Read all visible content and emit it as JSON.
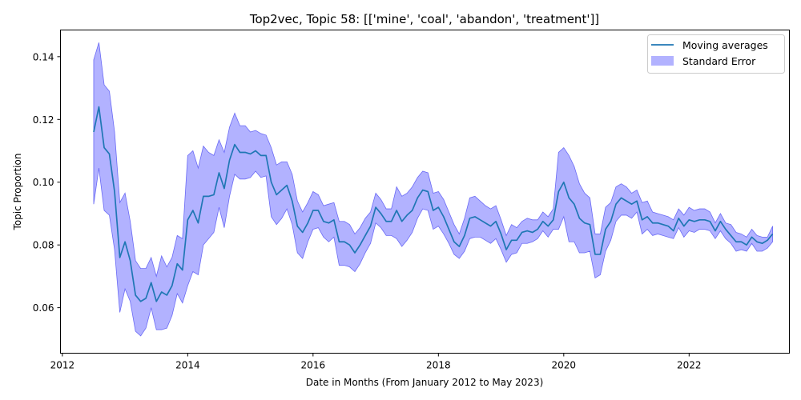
{
  "chart_data": {
    "type": "line",
    "title": "Top2vec, Topic 58: [['mine', 'coal', 'abandon', 'treatment']]",
    "xlabel": "Date in Months (From January 2012 to May 2023)",
    "ylabel": "Topic Proportion",
    "xlim": [
      2011.97,
      2023.6
    ],
    "ylim": [
      0.0455,
      0.1485
    ],
    "x_ticks": [
      2012,
      2014,
      2016,
      2018,
      2020,
      2022
    ],
    "x_tick_labels": [
      "2012",
      "2014",
      "2016",
      "2018",
      "2020",
      "2022"
    ],
    "y_ticks": [
      0.06,
      0.08,
      0.1,
      0.12,
      0.14
    ],
    "y_tick_labels": [
      "0.06",
      "0.08",
      "0.10",
      "0.12",
      "0.14"
    ],
    "grid": false,
    "legend_position": "top-right",
    "colors": {
      "line": "#1f77b4",
      "band": "#0000ff",
      "band_stroke": "#6a6af5"
    },
    "series": [
      {
        "name": "Moving averages",
        "x": [
          2012.5,
          2012.583,
          2012.667,
          2012.75,
          2012.833,
          2012.917,
          2013.0,
          2013.083,
          2013.167,
          2013.25,
          2013.333,
          2013.417,
          2013.5,
          2013.583,
          2013.667,
          2013.75,
          2013.833,
          2013.917,
          2014.0,
          2014.083,
          2014.167,
          2014.25,
          2014.333,
          2014.417,
          2014.5,
          2014.583,
          2014.667,
          2014.75,
          2014.833,
          2014.917,
          2015.0,
          2015.083,
          2015.167,
          2015.25,
          2015.333,
          2015.417,
          2015.5,
          2015.583,
          2015.667,
          2015.75,
          2015.833,
          2015.917,
          2016.0,
          2016.083,
          2016.167,
          2016.25,
          2016.333,
          2016.417,
          2016.5,
          2016.583,
          2016.667,
          2016.75,
          2016.833,
          2016.917,
          2017.0,
          2017.083,
          2017.167,
          2017.25,
          2017.333,
          2017.417,
          2017.5,
          2017.583,
          2017.667,
          2017.75,
          2017.833,
          2017.917,
          2018.0,
          2018.083,
          2018.167,
          2018.25,
          2018.333,
          2018.417,
          2018.5,
          2018.583,
          2018.667,
          2018.75,
          2018.833,
          2018.917,
          2019.0,
          2019.083,
          2019.167,
          2019.25,
          2019.333,
          2019.417,
          2019.5,
          2019.583,
          2019.667,
          2019.75,
          2019.833,
          2019.917,
          2020.0,
          2020.083,
          2020.167,
          2020.25,
          2020.333,
          2020.417,
          2020.5,
          2020.583,
          2020.667,
          2020.75,
          2020.833,
          2020.917,
          2021.0,
          2021.083,
          2021.167,
          2021.25,
          2021.333,
          2021.417,
          2021.5,
          2021.583,
          2021.667,
          2021.75,
          2021.833,
          2021.917,
          2022.0,
          2022.083,
          2022.167,
          2022.25,
          2022.333,
          2022.417,
          2022.5,
          2022.583,
          2022.667,
          2022.75,
          2022.833,
          2022.917,
          2023.0,
          2023.083,
          2023.167,
          2023.25,
          2023.333
        ],
        "values": [
          0.116,
          0.124,
          0.111,
          0.109,
          0.097,
          0.076,
          0.081,
          0.075,
          0.064,
          0.062,
          0.063,
          0.068,
          0.062,
          0.065,
          0.064,
          0.067,
          0.074,
          0.072,
          0.088,
          0.091,
          0.087,
          0.0955,
          0.0955,
          0.096,
          0.103,
          0.098,
          0.107,
          0.112,
          0.1095,
          0.1095,
          0.109,
          0.11,
          0.1085,
          0.1085,
          0.1,
          0.096,
          0.0975,
          0.099,
          0.094,
          0.086,
          0.084,
          0.087,
          0.091,
          0.091,
          0.0875,
          0.087,
          0.088,
          0.081,
          0.081,
          0.08,
          0.0775,
          0.08,
          0.083,
          0.086,
          0.092,
          0.09,
          0.0875,
          0.0875,
          0.091,
          0.0875,
          0.0895,
          0.091,
          0.095,
          0.0975,
          0.097,
          0.091,
          0.092,
          0.089,
          0.085,
          0.081,
          0.0795,
          0.083,
          0.0885,
          0.089,
          0.088,
          0.087,
          0.086,
          0.0875,
          0.0835,
          0.0785,
          0.0815,
          0.0815,
          0.084,
          0.0845,
          0.084,
          0.085,
          0.0875,
          0.086,
          0.088,
          0.097,
          0.1,
          0.095,
          0.093,
          0.0885,
          0.087,
          0.0865,
          0.077,
          0.077,
          0.085,
          0.0875,
          0.093,
          0.095,
          0.094,
          0.093,
          0.094,
          0.088,
          0.089,
          0.087,
          0.087,
          0.0865,
          0.086,
          0.0845,
          0.0885,
          0.086,
          0.088,
          0.0875,
          0.088,
          0.088,
          0.0875,
          0.0845,
          0.0875,
          0.085,
          0.083,
          0.081,
          0.081,
          0.08,
          0.0825,
          0.081,
          0.0805,
          0.0815,
          0.0835
        ]
      },
      {
        "name": "Standard Error",
        "upper": [
          0.139,
          0.1445,
          0.131,
          0.129,
          0.116,
          0.0935,
          0.0965,
          0.0875,
          0.075,
          0.0725,
          0.0725,
          0.076,
          0.07,
          0.0765,
          0.073,
          0.076,
          0.083,
          0.082,
          0.1085,
          0.11,
          0.1045,
          0.1115,
          0.1095,
          0.1085,
          0.1135,
          0.1095,
          0.1175,
          0.122,
          0.118,
          0.118,
          0.116,
          0.1165,
          0.1155,
          0.115,
          0.111,
          0.1055,
          0.1065,
          0.1065,
          0.1025,
          0.094,
          0.0905,
          0.0935,
          0.097,
          0.096,
          0.0925,
          0.093,
          0.0935,
          0.0875,
          0.0875,
          0.0865,
          0.0835,
          0.0855,
          0.0885,
          0.0905,
          0.0965,
          0.0945,
          0.0915,
          0.0915,
          0.0985,
          0.0955,
          0.0965,
          0.0985,
          0.1015,
          0.1035,
          0.103,
          0.0965,
          0.097,
          0.0945,
          0.0905,
          0.0865,
          0.0835,
          0.0885,
          0.095,
          0.0955,
          0.094,
          0.0925,
          0.0915,
          0.0925,
          0.088,
          0.083,
          0.0865,
          0.0855,
          0.0875,
          0.0885,
          0.088,
          0.088,
          0.0905,
          0.089,
          0.0915,
          0.1095,
          0.111,
          0.1085,
          0.105,
          0.0995,
          0.0965,
          0.095,
          0.0835,
          0.0835,
          0.092,
          0.0935,
          0.0985,
          0.0995,
          0.0985,
          0.0965,
          0.0975,
          0.0935,
          0.094,
          0.0905,
          0.09,
          0.0895,
          0.089,
          0.088,
          0.0915,
          0.0895,
          0.092,
          0.091,
          0.0915,
          0.0915,
          0.0905,
          0.087,
          0.09,
          0.087,
          0.0865,
          0.084,
          0.0835,
          0.0825,
          0.085,
          0.083,
          0.0825,
          0.0825,
          0.086
        ],
        "lower": [
          0.093,
          0.1045,
          0.091,
          0.0895,
          0.0785,
          0.0585,
          0.066,
          0.062,
          0.0525,
          0.051,
          0.0535,
          0.06,
          0.053,
          0.053,
          0.0535,
          0.0575,
          0.0645,
          0.0615,
          0.067,
          0.0715,
          0.0705,
          0.08,
          0.082,
          0.084,
          0.092,
          0.0855,
          0.0955,
          0.1025,
          0.101,
          0.101,
          0.1015,
          0.1035,
          0.1015,
          0.102,
          0.089,
          0.0865,
          0.0885,
          0.0915,
          0.0865,
          0.0775,
          0.0757,
          0.081,
          0.085,
          0.0855,
          0.0825,
          0.081,
          0.0825,
          0.0735,
          0.0735,
          0.073,
          0.0715,
          0.074,
          0.0775,
          0.0805,
          0.087,
          0.0855,
          0.083,
          0.083,
          0.082,
          0.0795,
          0.0815,
          0.084,
          0.0885,
          0.0915,
          0.091,
          0.085,
          0.086,
          0.0835,
          0.0805,
          0.077,
          0.0757,
          0.078,
          0.082,
          0.0825,
          0.0825,
          0.0815,
          0.0805,
          0.082,
          0.0785,
          0.0745,
          0.077,
          0.0775,
          0.0805,
          0.0805,
          0.081,
          0.082,
          0.0845,
          0.0825,
          0.085,
          0.085,
          0.089,
          0.081,
          0.081,
          0.0775,
          0.0775,
          0.078,
          0.0695,
          0.0705,
          0.078,
          0.0815,
          0.0875,
          0.0895,
          0.0895,
          0.0885,
          0.0905,
          0.0835,
          0.085,
          0.083,
          0.0835,
          0.083,
          0.0825,
          0.082,
          0.0855,
          0.0825,
          0.0845,
          0.084,
          0.085,
          0.085,
          0.0845,
          0.082,
          0.0845,
          0.082,
          0.0805,
          0.078,
          0.0785,
          0.078,
          0.0805,
          0.078,
          0.078,
          0.079,
          0.081
        ]
      }
    ]
  }
}
